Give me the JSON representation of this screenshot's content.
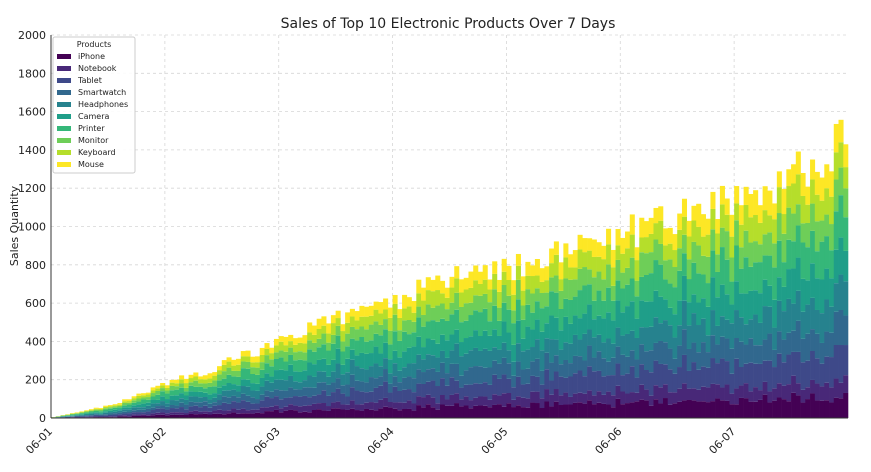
{
  "chart_data": {
    "type": "bar",
    "stacked": true,
    "title": "Sales of Top 10 Electronic Products Over 7 Days",
    "xlabel": "",
    "ylabel": "Sales Quantity",
    "ylim": [
      0,
      2000
    ],
    "yticks": [
      0,
      200,
      400,
      600,
      800,
      1000,
      1200,
      1400,
      1600,
      1800,
      2000
    ],
    "xticks": [
      "06-01",
      "06-02",
      "06-03",
      "06-04",
      "06-05",
      "06-06",
      "06-07"
    ],
    "x_start": "2024-06-01 00:00",
    "x_end": "2024-06-07 23:00",
    "x_interval": "hourly",
    "grid": true,
    "legend": {
      "title": "Products",
      "position": "top-left"
    },
    "colors": [
      "#440154",
      "#482878",
      "#3e4989",
      "#31688e",
      "#26828e",
      "#1f9e89",
      "#35b779",
      "#6ece58",
      "#b5de2b",
      "#fde725"
    ],
    "total_at_hour": [
      [
        0,
        5
      ],
      [
        12,
        65
      ],
      [
        24,
        180
      ],
      [
        36,
        280
      ],
      [
        48,
        400
      ],
      [
        60,
        520
      ],
      [
        72,
        620
      ],
      [
        84,
        720
      ],
      [
        96,
        780
      ],
      [
        108,
        860
      ],
      [
        120,
        950
      ],
      [
        132,
        1060
      ],
      [
        144,
        1150
      ],
      [
        156,
        1280
      ],
      [
        167,
        1480
      ]
    ],
    "series": [
      {
        "name": "iPhone",
        "share": 0.082
      },
      {
        "name": "Notebook",
        "share": 0.062
      },
      {
        "name": "Tablet",
        "share": 0.108
      },
      {
        "name": "Smartwatch",
        "share": 0.098
      },
      {
        "name": "Headphones",
        "share": 0.112
      },
      {
        "name": "Camera",
        "share": 0.118
      },
      {
        "name": "Printer",
        "share": 0.132
      },
      {
        "name": "Monitor",
        "share": 0.106
      },
      {
        "name": "Keyboard",
        "share": 0.094
      },
      {
        "name": "Mouse",
        "share": 0.088
      }
    ]
  }
}
